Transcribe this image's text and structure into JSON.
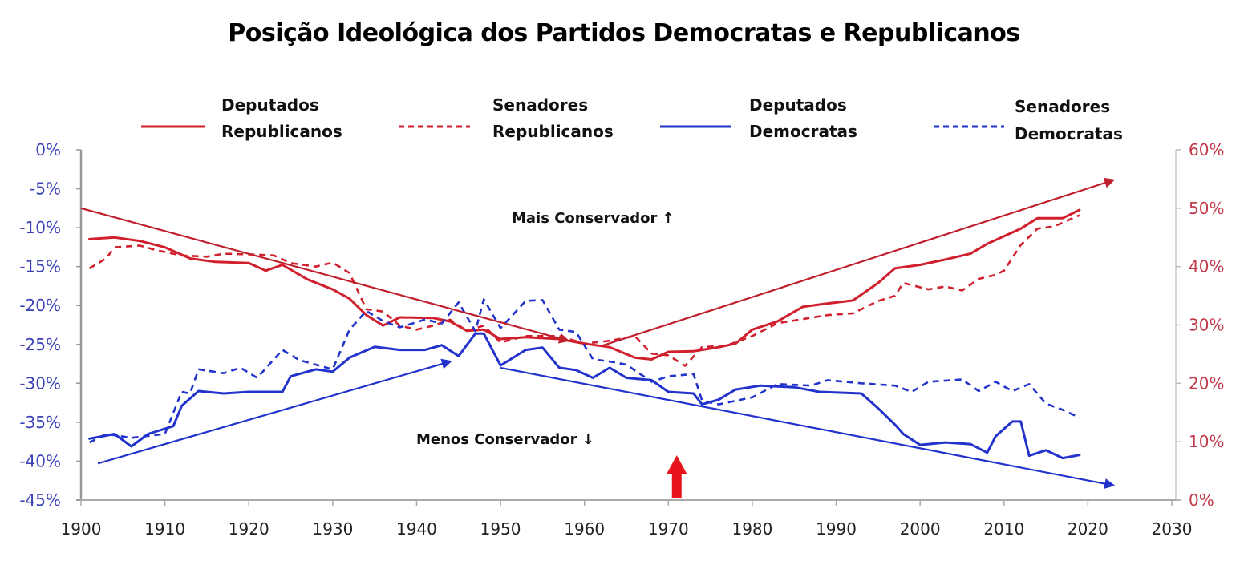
{
  "chart_data": {
    "type": "line",
    "title": "Posição Ideológica dos Partidos Democratas e Republicanos",
    "xlabel": "",
    "ylabel_left": "",
    "ylabel_right": "",
    "xlim": [
      1900,
      2030
    ],
    "x_ticks": [
      "1900",
      "1910",
      "1920",
      "1930",
      "1940",
      "1950",
      "1960",
      "1970",
      "1980",
      "1990",
      "2000",
      "2010",
      "2020",
      "2030"
    ],
    "ylim_left": [
      -45,
      0
    ],
    "y_ticks_left": [
      "0%",
      "-5%",
      "-10%",
      "-15%",
      "-20%",
      "-25%",
      "-30%",
      "-35%",
      "-40%",
      "-45%"
    ],
    "ylim_right": [
      0,
      60
    ],
    "y_ticks_right": [
      "60%",
      "50%",
      "40%",
      "30%",
      "20%",
      "10%",
      "0%"
    ],
    "grid": false,
    "legend_position": "top",
    "colors": {
      "republican": "#d0202e",
      "democrat": "#2233cc",
      "left_axis": "#3b43b8",
      "right_axis": "#c0394b"
    },
    "series": [
      {
        "name": "Deputados Republicanos",
        "legend_lines": [
          "Deputados",
          "Republicanos"
        ],
        "axis": "right",
        "style": "solid",
        "color": "#d0202e",
        "x": [
          1901,
          1904,
          1907,
          1910,
          1913,
          1916,
          1920,
          1922,
          1924,
          1927,
          1930,
          1932,
          1934,
          1936,
          1938,
          1942,
          1944,
          1946,
          1948,
          1950,
          1953,
          1957,
          1960,
          1963,
          1966,
          1968,
          1970,
          1973,
          1976,
          1978,
          1980,
          1983,
          1986,
          1989,
          1992,
          1995,
          1997,
          2000,
          2003,
          2006,
          2008,
          2010,
          2012,
          2014,
          2017,
          2019
        ],
        "values": [
          44.7,
          45.0,
          44.4,
          43.3,
          41.4,
          40.8,
          40.6,
          39.3,
          40.3,
          37.8,
          36.1,
          34.5,
          31.7,
          29.9,
          31.3,
          31.2,
          30.6,
          29.0,
          29.2,
          27.6,
          27.9,
          27.6,
          26.8,
          26.2,
          24.4,
          24.1,
          25.4,
          25.5,
          26.2,
          26.8,
          29.2,
          30.6,
          33.1,
          33.7,
          34.2,
          37.2,
          39.7,
          40.3,
          41.2,
          42.2,
          43.9,
          45.2,
          46.5,
          48.3,
          48.3,
          49.7
        ]
      },
      {
        "name": "Senadores Republicanos",
        "legend_lines": [
          "Senadores",
          "Republicanos"
        ],
        "axis": "right",
        "style": "dashed",
        "color": "#d0202e",
        "x": [
          1901,
          1903,
          1904,
          1907,
          1909,
          1912,
          1915,
          1917,
          1920,
          1923,
          1925,
          1928,
          1930,
          1932,
          1934,
          1936,
          1938,
          1940,
          1942,
          1944,
          1946,
          1948,
          1950,
          1953,
          1957,
          1960,
          1963,
          1966,
          1968,
          1970,
          1972,
          1974,
          1977,
          1980,
          1983,
          1986,
          1989,
          1992,
          1995,
          1997,
          1998,
          2001,
          2003,
          2005,
          2007,
          2009,
          2010,
          2012,
          2014,
          2016,
          2019
        ],
        "values": [
          39.7,
          41.4,
          43.3,
          43.6,
          42.8,
          41.9,
          41.7,
          42.2,
          42.1,
          41.9,
          40.6,
          40.0,
          40.7,
          38.9,
          32.7,
          32.3,
          29.9,
          29.2,
          29.9,
          30.9,
          29.0,
          29.9,
          27.0,
          28.1,
          28.1,
          26.8,
          27.3,
          28.1,
          25.1,
          24.8,
          23.0,
          26.2,
          26.5,
          28.1,
          30.3,
          31.0,
          31.7,
          32.0,
          34.1,
          35.0,
          37.2,
          36.1,
          36.6,
          35.9,
          37.9,
          38.6,
          39.3,
          43.7,
          46.5,
          46.9,
          48.8
        ]
      },
      {
        "name": "Deputados Democratas",
        "legend_lines": [
          "Deputados",
          "Democratas"
        ],
        "axis": "left",
        "style": "solid",
        "color": "#2233cc",
        "x": [
          1901,
          1904,
          1906,
          1908,
          1911,
          1912,
          1914,
          1917,
          1920,
          1924,
          1925,
          1928,
          1930,
          1932,
          1935,
          1938,
          1941,
          1943,
          1945,
          1947,
          1948,
          1950,
          1953,
          1955,
          1957,
          1959,
          1961,
          1963,
          1965,
          1968,
          1970,
          1973,
          1974,
          1976,
          1978,
          1981,
          1985,
          1988,
          1993,
          1995,
          1997,
          1998,
          2000,
          2003,
          2006,
          2008,
          2009,
          2011,
          2012,
          2013,
          2015,
          2017,
          2019
        ],
        "values": [
          -37.1,
          -36.5,
          -38.1,
          -36.5,
          -35.5,
          -32.9,
          -31.0,
          -31.3,
          -31.1,
          -31.1,
          -29.1,
          -28.2,
          -28.5,
          -26.7,
          -25.3,
          -25.7,
          -25.7,
          -25.1,
          -26.5,
          -23.6,
          -23.6,
          -27.7,
          -25.7,
          -25.4,
          -28.0,
          -28.3,
          -29.3,
          -28.0,
          -29.3,
          -29.6,
          -31.1,
          -31.3,
          -32.7,
          -32.1,
          -30.8,
          -30.3,
          -30.5,
          -31.1,
          -31.3,
          -33.2,
          -35.3,
          -36.5,
          -37.9,
          -37.6,
          -37.8,
          -38.9,
          -36.8,
          -34.9,
          -34.9,
          -39.3,
          -38.6,
          -39.6,
          -39.2
        ]
      },
      {
        "name": "Senadores Democratas",
        "legend_lines": [
          "Senadores",
          "Democratas"
        ],
        "axis": "left",
        "style": "dashed",
        "color": "#2233cc",
        "x": [
          1901,
          1903,
          1906,
          1910,
          1912,
          1913,
          1914,
          1917,
          1919,
          1921,
          1924,
          1926,
          1930,
          1932,
          1934,
          1936,
          1938,
          1941,
          1943,
          1945,
          1947,
          1948,
          1950,
          1953,
          1955,
          1957,
          1959,
          1961,
          1963,
          1965,
          1968,
          1970,
          1973,
          1974,
          1976,
          1980,
          1983,
          1987,
          1989,
          1993,
          1997,
          1999,
          2001,
          2005,
          2007,
          2009,
          2011,
          2013,
          2015,
          2017,
          2019
        ],
        "values": [
          -37.6,
          -36.5,
          -37.0,
          -36.5,
          -31.1,
          -31.3,
          -28.2,
          -28.7,
          -28.0,
          -29.3,
          -25.7,
          -27.0,
          -28.2,
          -23.1,
          -20.7,
          -22.0,
          -22.8,
          -21.8,
          -22.3,
          -19.6,
          -23.3,
          -19.2,
          -22.9,
          -19.4,
          -19.3,
          -23.1,
          -23.4,
          -26.9,
          -27.2,
          -27.6,
          -29.8,
          -29.1,
          -28.8,
          -32.2,
          -32.7,
          -31.8,
          -30.1,
          -30.3,
          -29.6,
          -30.0,
          -30.3,
          -31.1,
          -29.8,
          -29.5,
          -31.0,
          -29.8,
          -31.0,
          -30.1,
          -32.6,
          -33.4,
          -34.4
        ]
      }
    ],
    "trend_arrows": [
      {
        "name": "republican-decline",
        "color": "#c0202e",
        "from": {
          "year": 1900,
          "left_axis_value": -7.5
        },
        "to": {
          "year": 1958,
          "left_axis_value": -24.5
        }
      },
      {
        "name": "republican-rise",
        "color": "#c0202e",
        "from": {
          "year": 1962,
          "left_axis_value": -25.2
        },
        "to": {
          "year": 2023,
          "left_axis_value": -3.9
        }
      },
      {
        "name": "democrat-rise",
        "color": "#2233cc",
        "from": {
          "year": 1902,
          "left_axis_value": -40.3
        },
        "to": {
          "year": 1944,
          "left_axis_value": -27.2
        }
      },
      {
        "name": "democrat-decline",
        "color": "#2233cc",
        "from": {
          "year": 1950,
          "left_axis_value": -28.0
        },
        "to": {
          "year": 2023,
          "left_axis_value": -43.1
        }
      }
    ],
    "marker_arrow": {
      "year": 1971,
      "color": "#e8141c",
      "direction": "up"
    },
    "annotations": {
      "more_conservative": "Mais Conservador ↑",
      "less_conservative": "Menos Conservador ↓"
    }
  }
}
